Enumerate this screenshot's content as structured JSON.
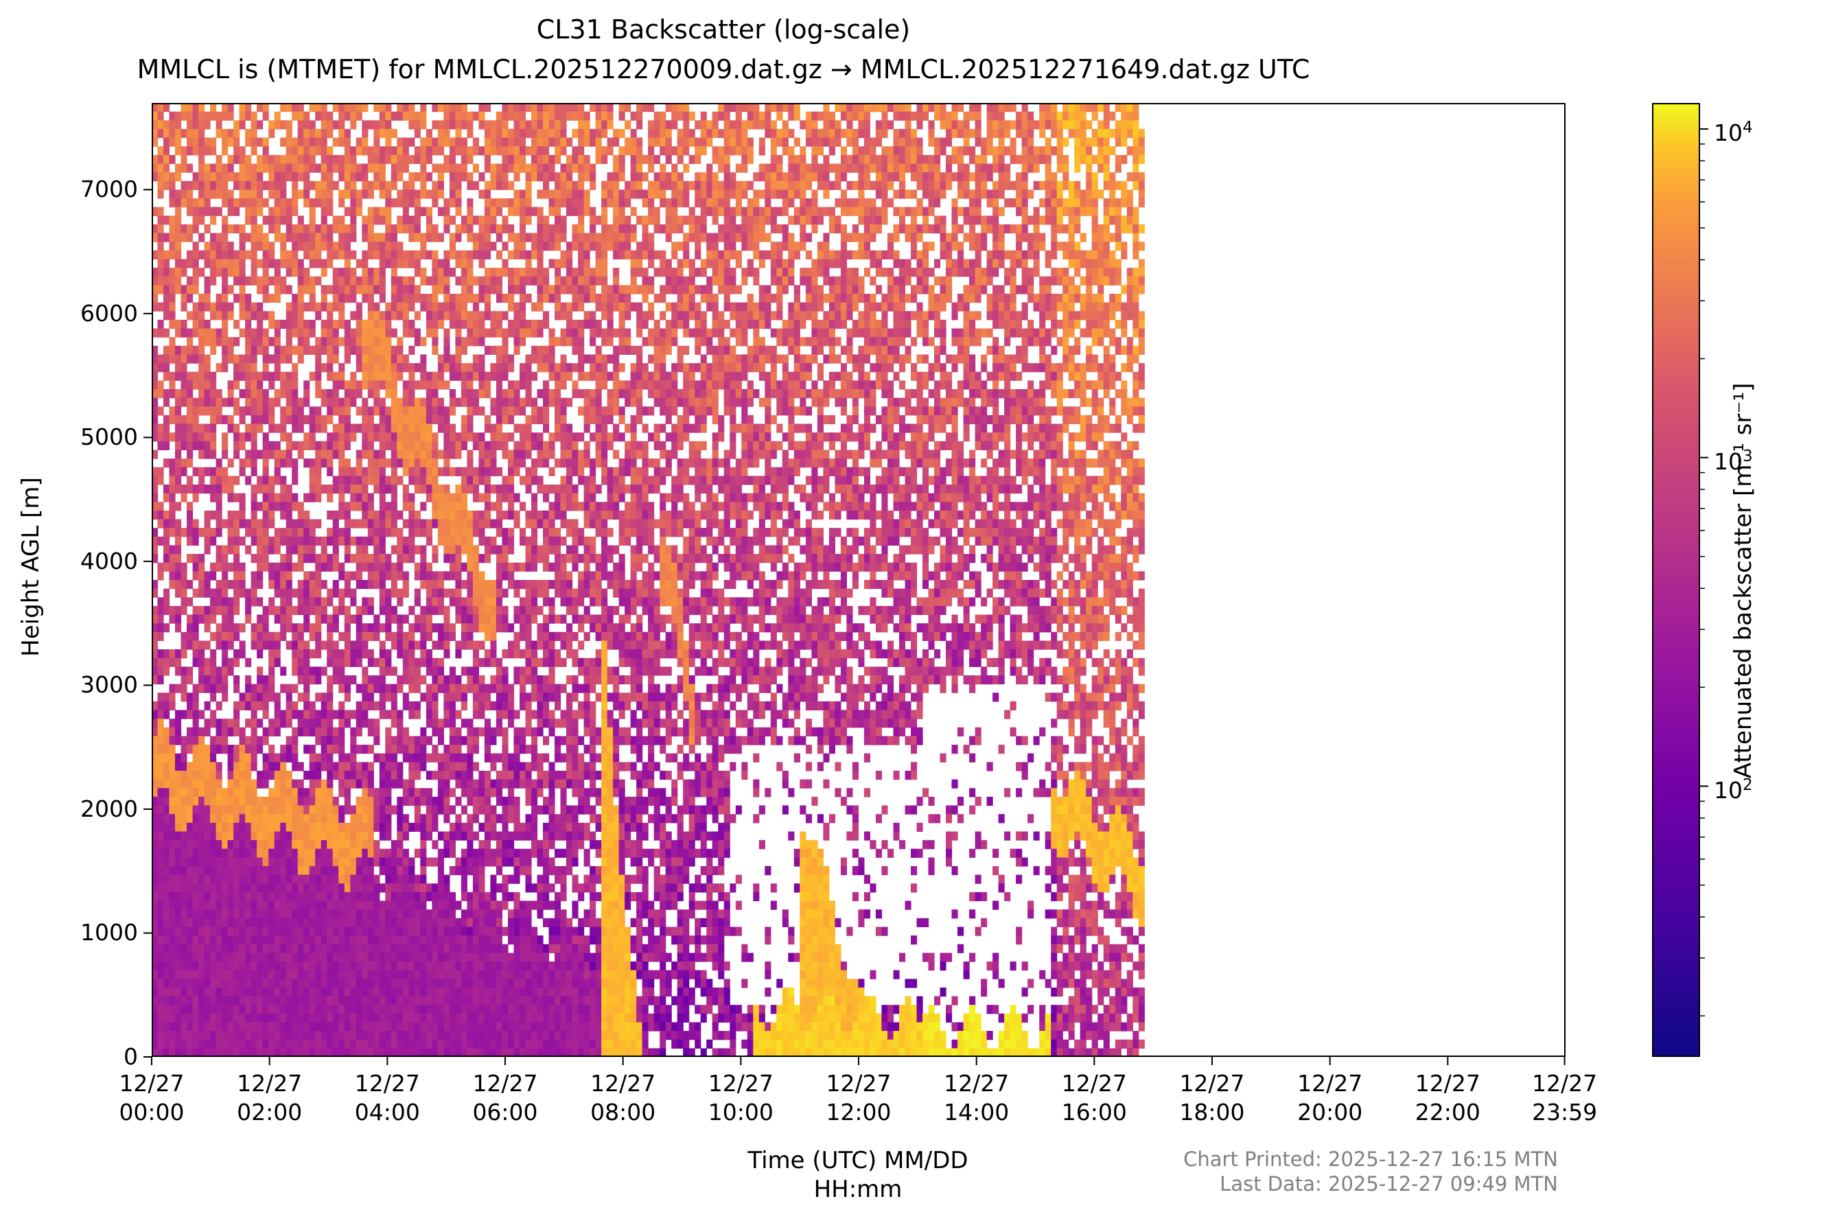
{
  "title": "CL31 Backscatter (log-scale)",
  "subtitle": "MMLCL is (MTMET) for MMLCL.202512270009.dat.gz → MMLCL.202512271649.dat.gz UTC",
  "footer": {
    "printed": "Chart Printed: 2025-12-27 16:15 MTN",
    "last_data": "Last Data: 2025-12-27 09:49 MTN"
  },
  "colors": {
    "colormap": "plasma",
    "empty": "#ffffff"
  },
  "chart_data": {
    "type": "heatmap",
    "title": "CL31 Backscatter (log-scale)",
    "xlabel_line1": "Time (UTC) MM/DD",
    "xlabel_line2": "HH:mm",
    "ylabel": "Height AGL [m]",
    "colorbar_label": "Attenuated backscatter [m⁻¹ sr⁻¹]",
    "colorscale": "log",
    "clim": [
      15,
      12000
    ],
    "xlim_hours": [
      0,
      24
    ],
    "ylim": [
      0,
      7700
    ],
    "data_end_hours": 16.85,
    "x_ticks": [
      {
        "hours": 0,
        "date": "12/27",
        "time": "00:00"
      },
      {
        "hours": 2,
        "date": "12/27",
        "time": "02:00"
      },
      {
        "hours": 4,
        "date": "12/27",
        "time": "04:00"
      },
      {
        "hours": 6,
        "date": "12/27",
        "time": "06:00"
      },
      {
        "hours": 8,
        "date": "12/27",
        "time": "08:00"
      },
      {
        "hours": 10,
        "date": "12/27",
        "time": "10:00"
      },
      {
        "hours": 12,
        "date": "12/27",
        "time": "12:00"
      },
      {
        "hours": 14,
        "date": "12/27",
        "time": "14:00"
      },
      {
        "hours": 16,
        "date": "12/27",
        "time": "16:00"
      },
      {
        "hours": 18,
        "date": "12/27",
        "time": "18:00"
      },
      {
        "hours": 20,
        "date": "12/27",
        "time": "20:00"
      },
      {
        "hours": 22,
        "date": "12/27",
        "time": "22:00"
      },
      {
        "hours": 23.983,
        "date": "12/27",
        "time": "23:59"
      }
    ],
    "y_ticks": [
      0,
      1000,
      2000,
      3000,
      4000,
      5000,
      6000,
      7000
    ],
    "colorbar_ticks": [
      {
        "value": 100,
        "label": "10",
        "exp": "2"
      },
      {
        "value": 1000,
        "label": "10",
        "exp": "3"
      },
      {
        "value": 10000,
        "label": "10",
        "exp": "4"
      }
    ],
    "layers": [
      {
        "name": "boundary-layer",
        "t_start": 0,
        "t_end": 8.0,
        "h_top_start": 2100,
        "h_top_end": 700,
        "level": 0.35
      },
      {
        "name": "cloud-early",
        "t_start": 0,
        "t_end": 3.8,
        "h_top_start": 2550,
        "h_top_end": 1950,
        "level": 0.75
      },
      {
        "name": "cloud-mid-upper",
        "t_start": 3.6,
        "t_end": 5.8,
        "h_top_start": 6100,
        "h_top_end": 3900,
        "level": 0.72
      },
      {
        "name": "cloud-08",
        "t_start": 7.6,
        "t_end": 8.3,
        "h_top_start": 3600,
        "h_top_end": 0,
        "level": 0.85
      },
      {
        "name": "cloud-09",
        "t_start": 8.6,
        "t_end": 9.2,
        "h_top_start": 4400,
        "h_top_end": 3100,
        "level": 0.7
      },
      {
        "name": "low-fog-10-13",
        "t_start": 10.2,
        "t_end": 13.1,
        "h_top_start": 400,
        "h_top_end": 300,
        "level": 0.9
      },
      {
        "name": "cloud-11-12",
        "t_start": 11.0,
        "t_end": 12.3,
        "h_top_start": 2100,
        "h_top_end": 0,
        "level": 0.85
      },
      {
        "name": "low-cloud-13-15",
        "t_start": 13.1,
        "t_end": 15.3,
        "h_top_start": 250,
        "h_top_end": 250,
        "level": 0.95
      },
      {
        "name": "cloud-15-16",
        "t_start": 15.3,
        "t_end": 16.85,
        "h_top_start": 2300,
        "h_top_end": 1700,
        "level": 0.85
      }
    ]
  }
}
